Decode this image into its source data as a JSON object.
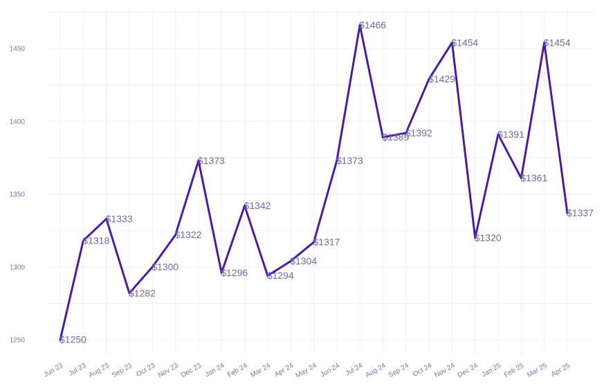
{
  "chart_data": {
    "type": "line",
    "title": "",
    "xlabel": "",
    "ylabel": "",
    "categories": [
      "Jun 23",
      "Jul 23",
      "Aug 23",
      "Sep 23",
      "Oct 23",
      "Nov 23",
      "Dec 23",
      "Jan 24",
      "Feb 24",
      "Mar 24",
      "Apr 24",
      "May 24",
      "Jun 24",
      "Jul 24",
      "Aug 24",
      "Sep 24",
      "Oct 24",
      "Nov 24",
      "Dec 24",
      "Jan 25",
      "Feb 25",
      "Mar 25",
      "Apr 25"
    ],
    "series": [
      {
        "values": [
          1250,
          1318,
          1333,
          1282,
          1300,
          1322,
          1373,
          1296,
          1342,
          1294,
          1304,
          1317,
          1373,
          1466,
          1389,
          1392,
          1429,
          1454,
          1320,
          1391,
          1361,
          1454,
          1337
        ],
        "labels": [
          "$1250",
          "$1318",
          "$1333",
          "$1282",
          "$1300",
          "$1322",
          "$1373",
          "$1296",
          "$1342",
          "$1294",
          "$1304",
          "$1317",
          "$1373",
          "$1466",
          "$1389",
          "$1392",
          "$1429",
          "$1454",
          "$1320",
          "$1391",
          "$1361",
          "$1454",
          "$1337"
        ]
      }
    ],
    "y_ticks": [
      1250,
      1300,
      1350,
      1400,
      1450
    ],
    "ylim": [
      1240,
      1475
    ],
    "grid": true,
    "legend": "none",
    "colors": {
      "line": "#4a1aa3",
      "labels": "#6f6aa8",
      "ticks": "#7a76b0",
      "grid": "#f1f1f5"
    }
  }
}
